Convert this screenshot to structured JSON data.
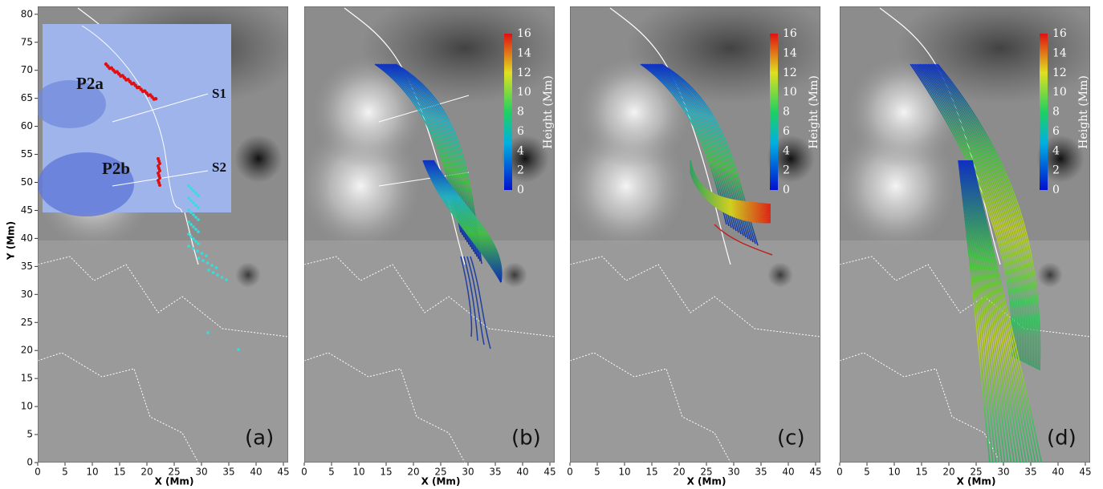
{
  "y_axis": {
    "label": "Y (Mm)",
    "ticks": [
      0,
      5,
      10,
      15,
      20,
      25,
      30,
      35,
      40,
      45,
      50,
      55,
      60,
      65,
      70,
      75,
      80
    ]
  },
  "x_axis": {
    "label": "X (Mm)",
    "ticks": [
      0,
      5,
      10,
      15,
      20,
      25,
      30,
      35,
      40,
      45
    ]
  },
  "panel_labels": [
    "(a)",
    "(b)",
    "(c)",
    "(d)"
  ],
  "inset_labels": {
    "p2a": "P2a",
    "p2b": "P2b",
    "s1": "S1",
    "s2": "S2"
  },
  "colorbar": {
    "label": "Height (Mm)",
    "ticks": [
      0,
      2,
      4,
      6,
      8,
      10,
      12,
      14,
      16
    ]
  }
}
